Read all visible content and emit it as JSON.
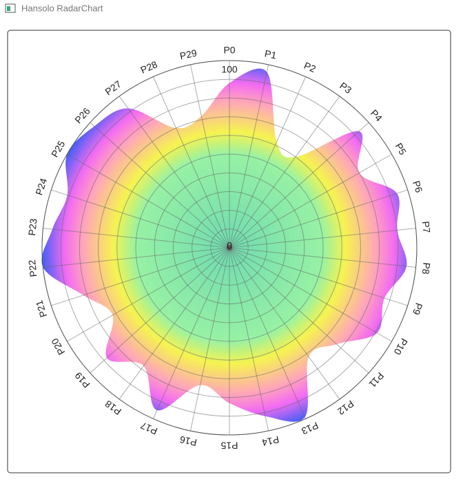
{
  "window": {
    "title": "Hansolo RadarChart"
  },
  "chart_data": {
    "type": "radar",
    "smooth": true,
    "categories": [
      "P0",
      "P1",
      "P2",
      "P3",
      "P4",
      "P5",
      "P6",
      "P7",
      "P8",
      "P9",
      "P10",
      "P11",
      "P12",
      "P13",
      "P14",
      "P15",
      "P16",
      "P17",
      "P18",
      "P19",
      "P20",
      "P21",
      "P22",
      "P23",
      "P24",
      "P25",
      "P26",
      "P27",
      "P28",
      "P29"
    ],
    "values": [
      88,
      96,
      62,
      60,
      93,
      80,
      94,
      90,
      95,
      87,
      91,
      77,
      72,
      99,
      92,
      83,
      75,
      95,
      78,
      88,
      72,
      82,
      100,
      95,
      91,
      100,
      97,
      92,
      70,
      72
    ],
    "rlim": [
      0,
      100
    ],
    "rticks": [
      0,
      100
    ],
    "grid": true,
    "gradient": [
      {
        "offset": 0,
        "color": "#5fd6a8"
      },
      {
        "offset": 0.5,
        "color": "#8cf09a"
      },
      {
        "offset": 0.62,
        "color": "#f4f23c"
      },
      {
        "offset": 0.78,
        "color": "#ff9db0"
      },
      {
        "offset": 0.88,
        "color": "#f25cf0"
      },
      {
        "offset": 1,
        "color": "#2f4df5"
      }
    ]
  }
}
